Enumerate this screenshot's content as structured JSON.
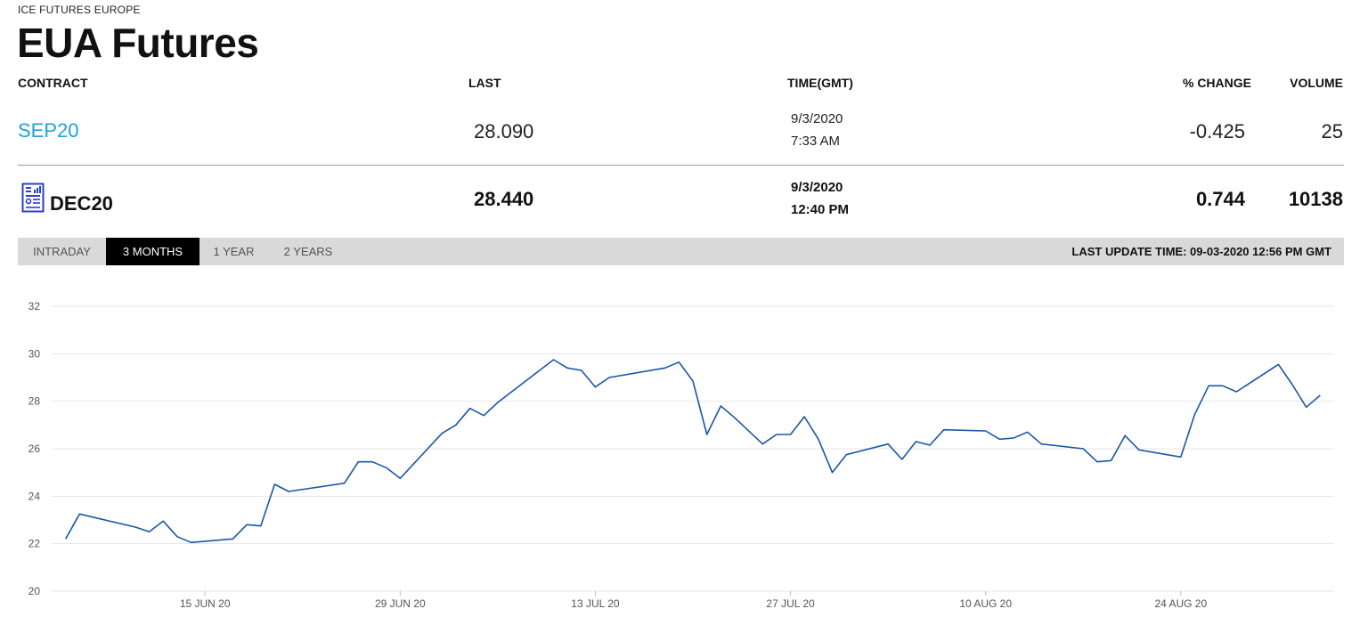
{
  "header": {
    "exchange": "ICE FUTURES EUROPE",
    "title": "EUA Futures"
  },
  "table": {
    "columns": [
      "CONTRACT",
      "LAST",
      "TIME(GMT)",
      "% CHANGE",
      "VOLUME"
    ],
    "rows": [
      {
        "contract": "SEP20",
        "last": "28.090",
        "date": "9/3/2020",
        "time": "7:33 AM",
        "change": "-0.425",
        "volume": "25"
      },
      {
        "contract": "DEC20",
        "last": "28.440",
        "date": "9/3/2020",
        "time": "12:40 PM",
        "change": "0.744",
        "volume": "10138"
      }
    ]
  },
  "tabs": [
    {
      "label": "INTRADAY"
    },
    {
      "label": "3 MONTHS"
    },
    {
      "label": "1 YEAR"
    },
    {
      "label": "2 YEARS"
    }
  ],
  "active_tab": "3 MONTHS",
  "last_update": "LAST UPDATE TIME: 09-03-2020 12:56 PM GMT",
  "colors": {
    "line": "#1a56a6",
    "link": "#1fa3d6",
    "active_tab_bg": "#000000",
    "tabbar_bg": "#d9d9d9",
    "grid": "#e6e6e6"
  },
  "icons": {
    "contract_report": "report-icon"
  },
  "chart_data": {
    "type": "line",
    "title": "",
    "xlabel": "",
    "ylabel": "",
    "ylim": [
      20,
      32
    ],
    "yticks": [
      20,
      22,
      24,
      26,
      28,
      30,
      32
    ],
    "grid": "horizontal",
    "x_range": [
      "2020-06-04",
      "2020-09-04"
    ],
    "xticks": [
      {
        "date": "2020-06-15",
        "label": "15 JUN 20"
      },
      {
        "date": "2020-06-29",
        "label": "29 JUN 20"
      },
      {
        "date": "2020-07-13",
        "label": "13 JUL 20"
      },
      {
        "date": "2020-07-27",
        "label": "27 JUL 20"
      },
      {
        "date": "2020-08-10",
        "label": "10 AUG 20"
      },
      {
        "date": "2020-08-24",
        "label": "24 AUG 20"
      }
    ],
    "series": [
      {
        "x": [
          "2020-06-05",
          "2020-06-06",
          "2020-06-10",
          "2020-06-11",
          "2020-06-12",
          "2020-06-13",
          "2020-06-14",
          "2020-06-17",
          "2020-06-18",
          "2020-06-19",
          "2020-06-20",
          "2020-06-21",
          "2020-06-25",
          "2020-06-26",
          "2020-06-27",
          "2020-06-28",
          "2020-06-29",
          "2020-07-02",
          "2020-07-03",
          "2020-07-04",
          "2020-07-05",
          "2020-07-06",
          "2020-07-10",
          "2020-07-11",
          "2020-07-12",
          "2020-07-13",
          "2020-07-14",
          "2020-07-18",
          "2020-07-19",
          "2020-07-20",
          "2020-07-21",
          "2020-07-22",
          "2020-07-23",
          "2020-07-25",
          "2020-07-26",
          "2020-07-27",
          "2020-07-28",
          "2020-07-29",
          "2020-07-30",
          "2020-07-31",
          "2020-08-03",
          "2020-08-04",
          "2020-08-05",
          "2020-08-06",
          "2020-08-07",
          "2020-08-10",
          "2020-08-11",
          "2020-08-12",
          "2020-08-13",
          "2020-08-14",
          "2020-08-17",
          "2020-08-18",
          "2020-08-19",
          "2020-08-20",
          "2020-08-21",
          "2020-08-24",
          "2020-08-25",
          "2020-08-26",
          "2020-08-27",
          "2020-08-28",
          "2020-08-31",
          "2020-09-01",
          "2020-09-02",
          "2020-09-03"
        ],
        "y": [
          22.2,
          23.25,
          22.7,
          22.5,
          22.95,
          22.3,
          22.05,
          22.2,
          22.8,
          22.75,
          24.5,
          24.2,
          24.55,
          25.45,
          25.45,
          25.2,
          24.75,
          26.65,
          27.0,
          27.7,
          27.4,
          27.95,
          29.75,
          29.4,
          29.3,
          28.6,
          29.0,
          29.4,
          29.65,
          28.85,
          26.6,
          27.8,
          27.3,
          26.2,
          26.6,
          26.6,
          27.35,
          26.4,
          25.0,
          25.75,
          26.2,
          25.55,
          26.3,
          26.15,
          26.8,
          26.75,
          26.4,
          26.45,
          26.7,
          26.2,
          26.0,
          25.45,
          25.5,
          26.55,
          25.95,
          25.65,
          27.45,
          28.65,
          28.65,
          28.4,
          29.55,
          28.7,
          27.75,
          28.25
        ]
      }
    ]
  }
}
